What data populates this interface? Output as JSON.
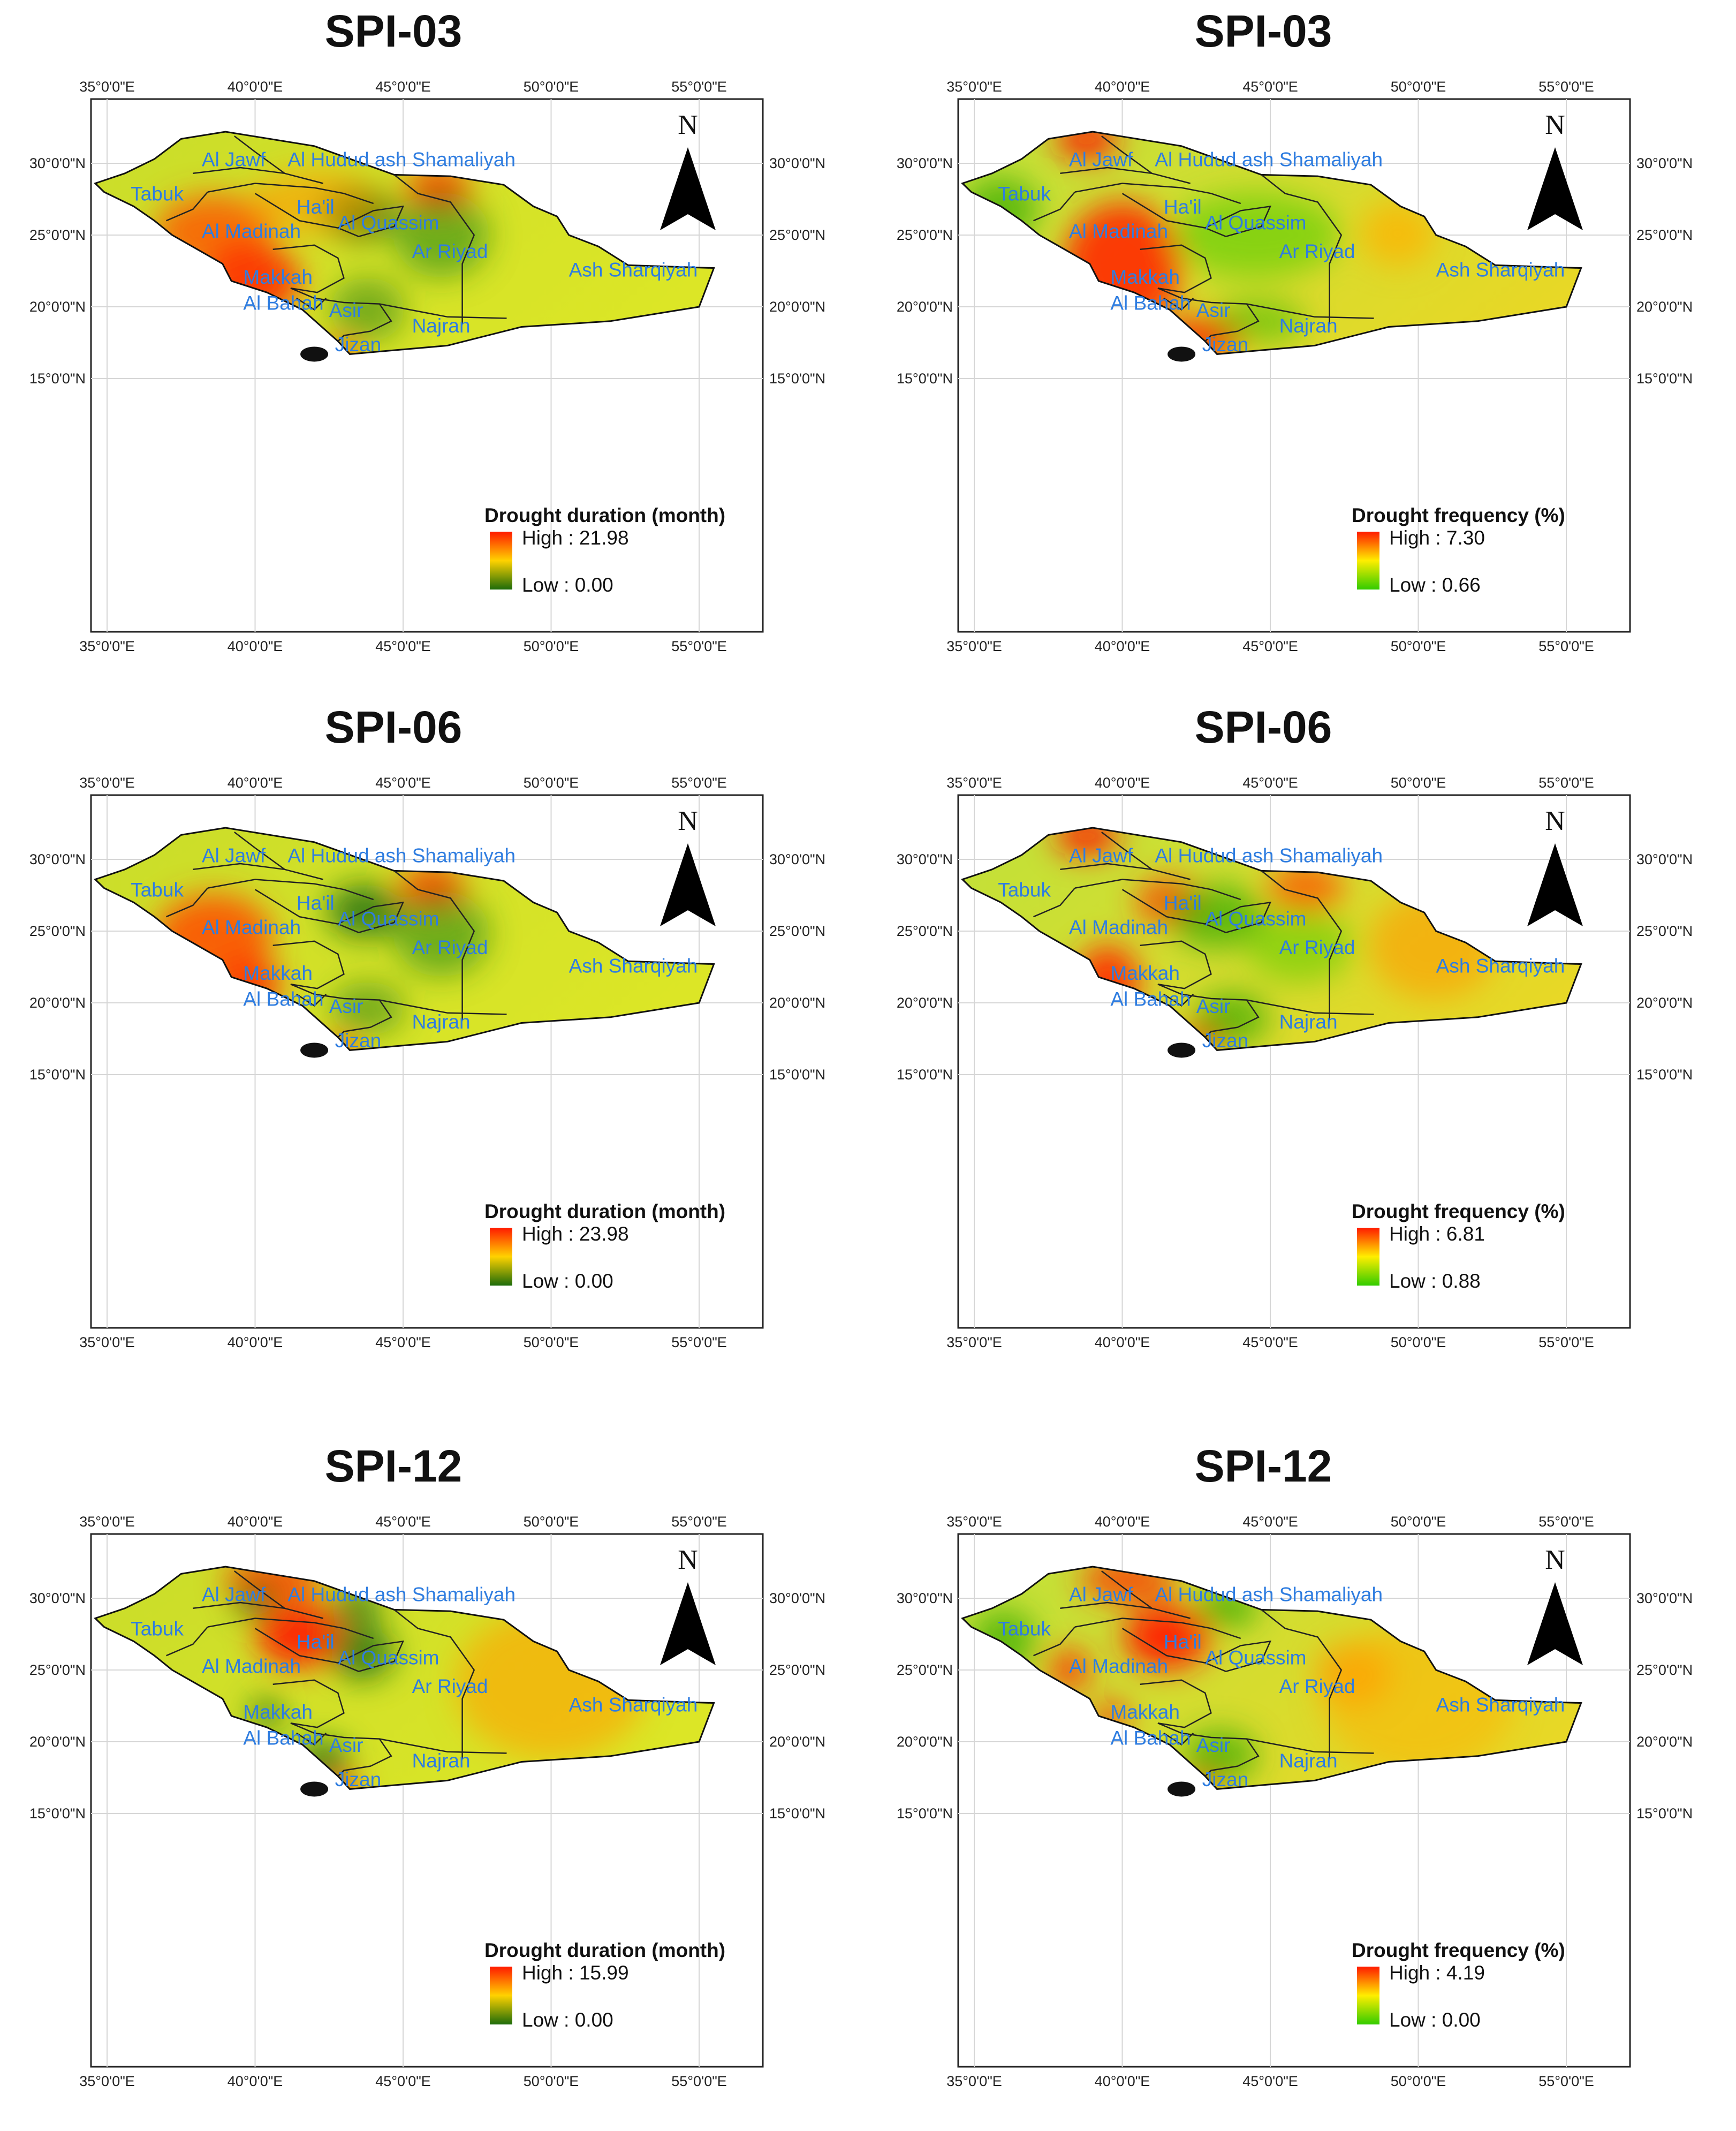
{
  "figure": {
    "lon_ticks": [
      "35°0'0\"E",
      "40°0'0\"E",
      "45°0'0\"E",
      "50°0'0\"E",
      "55°0'0\"E"
    ],
    "lat_ticks": [
      "30°0'0\"N",
      "25°0'0\"N",
      "20°0'0\"N",
      "15°0'0\"N"
    ],
    "north_label": "N",
    "regions": [
      "Al Jawf",
      "Al Hudud ash Shamaliyah",
      "Tabuk",
      "Ha'il",
      "Al Quassim",
      "Al Madinah",
      "Ar Riyad",
      "Ash Sharqiyah",
      "Makkah",
      "Al Bahah",
      "Asir",
      "Najran",
      "Jizan"
    ],
    "colors": {
      "region_label": "#2f7de0",
      "duration_ramp": [
        "#ff1a00",
        "#ffd200",
        "#1d6b0a"
      ],
      "frequency_ramp": [
        "#ff1a00",
        "#ffee00",
        "#33cc00"
      ]
    }
  },
  "panels": [
    {
      "title": "SPI-03",
      "legend_title": "Drought duration (month)",
      "high": "High : 21.98",
      "low": "Low : 0.00"
    },
    {
      "title": "SPI-03",
      "legend_title": "Drought frequency (%)",
      "high": "High : 7.30",
      "low": "Low : 0.66"
    },
    {
      "title": "SPI-06",
      "legend_title": "Drought duration (month)",
      "high": "High : 23.98",
      "low": "Low : 0.00"
    },
    {
      "title": "SPI-06",
      "legend_title": "Drought frequency (%)",
      "high": "High : 6.81",
      "low": "Low : 0.88"
    },
    {
      "title": "SPI-12",
      "legend_title": "Drought duration (month)",
      "high": "High : 15.99",
      "low": "Low : 0.00"
    },
    {
      "title": "SPI-12",
      "legend_title": "Drought frequency (%)",
      "high": "High : 4.19",
      "low": "Low : 0.00"
    }
  ]
}
